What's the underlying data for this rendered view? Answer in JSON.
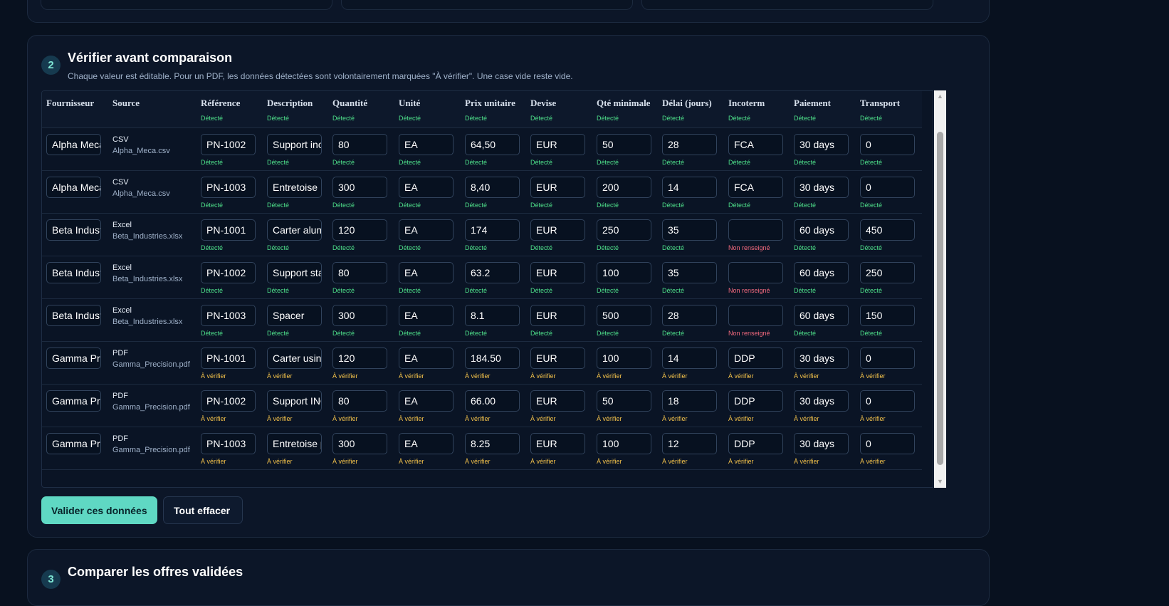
{
  "section2": {
    "step": "2",
    "title": "Vérifier avant comparaison",
    "subtitle": "Chaque valeur est éditable. Pour un PDF, les données détectées sont volontairement marquées \"À vérifier\". Une case vide reste vide."
  },
  "columns": [
    {
      "key": "fournisseur",
      "label": "Fournisseur",
      "status": ""
    },
    {
      "key": "source",
      "label": "Source",
      "status": ""
    },
    {
      "key": "reference",
      "label": "Référence",
      "status": "Détecté"
    },
    {
      "key": "description",
      "label": "Description",
      "status": "Détecté"
    },
    {
      "key": "quantite",
      "label": "Quantité",
      "status": "Détecté"
    },
    {
      "key": "unite",
      "label": "Unité",
      "status": "Détecté"
    },
    {
      "key": "prix",
      "label": "Prix unitaire",
      "status": "Détecté"
    },
    {
      "key": "devise",
      "label": "Devise",
      "status": "Détecté"
    },
    {
      "key": "qte_min",
      "label": "Qté minimale",
      "status": "Détecté"
    },
    {
      "key": "delai",
      "label": "Délai (jours)",
      "status": "Détecté"
    },
    {
      "key": "incoterm",
      "label": "Incoterm",
      "status": "Détecté"
    },
    {
      "key": "paiement",
      "label": "Paiement",
      "status": "Détecté"
    },
    {
      "key": "transport",
      "label": "Transport",
      "status": "Détecté"
    }
  ],
  "status_labels": {
    "ok": "Détecté",
    "warn": "À vérifier",
    "miss": "Non renseigné"
  },
  "rows": [
    {
      "fournisseur": "Alpha Meca",
      "source_type": "CSV",
      "source_file": "Alpha_Meca.csv",
      "values": [
        "PN-1002",
        "Support inox",
        "80",
        "EA",
        "64,50",
        "EUR",
        "50",
        "28",
        "FCA",
        "30 days",
        "0"
      ],
      "statuses": [
        "Détecté",
        "Détecté",
        "Détecté",
        "Détecté",
        "Détecté",
        "Détecté",
        "Détecté",
        "Détecté",
        "Détecté",
        "Détecté",
        "Détecté"
      ]
    },
    {
      "fournisseur": "Alpha Meca",
      "source_type": "CSV",
      "source_file": "Alpha_Meca.csv",
      "values": [
        "PN-1003",
        "Entretoise",
        "300",
        "EA",
        "8,40",
        "EUR",
        "200",
        "14",
        "FCA",
        "30 days",
        "0"
      ],
      "statuses": [
        "Détecté",
        "Détecté",
        "Détecté",
        "Détecté",
        "Détecté",
        "Détecté",
        "Détecté",
        "Détecté",
        "Détecté",
        "Détecté",
        "Détecté"
      ]
    },
    {
      "fournisseur": "Beta Industries",
      "source_type": "Excel",
      "source_file": "Beta_Industries.xlsx",
      "values": [
        "PN-1001",
        "Carter aluminium",
        "120",
        "EA",
        "174",
        "EUR",
        "250",
        "35",
        "",
        "60 days",
        "450"
      ],
      "statuses": [
        "Détecté",
        "Détecté",
        "Détecté",
        "Détecté",
        "Détecté",
        "Détecté",
        "Détecté",
        "Détecté",
        "Non renseigné",
        "Détecté",
        "Détecté"
      ]
    },
    {
      "fournisseur": "Beta Industries",
      "source_type": "Excel",
      "source_file": "Beta_Industries.xlsx",
      "values": [
        "PN-1002",
        "Support stainless",
        "80",
        "EA",
        "63.2",
        "EUR",
        "100",
        "35",
        "",
        "60 days",
        "250"
      ],
      "statuses": [
        "Détecté",
        "Détecté",
        "Détecté",
        "Détecté",
        "Détecté",
        "Détecté",
        "Détecté",
        "Détecté",
        "Non renseigné",
        "Détecté",
        "Détecté"
      ]
    },
    {
      "fournisseur": "Beta Industries",
      "source_type": "Excel",
      "source_file": "Beta_Industries.xlsx",
      "values": [
        "PN-1003",
        "Spacer",
        "300",
        "EA",
        "8.1",
        "EUR",
        "500",
        "28",
        "",
        "60 days",
        "150"
      ],
      "statuses": [
        "Détecté",
        "Détecté",
        "Détecté",
        "Détecté",
        "Détecté",
        "Détecté",
        "Détecté",
        "Détecté",
        "Non renseigné",
        "Détecté",
        "Détecté"
      ]
    },
    {
      "fournisseur": "Gamma Precision",
      "source_type": "PDF",
      "source_file": "Gamma_Precision.pdf",
      "values": [
        "PN-1001",
        "Carter usiné",
        "120",
        "EA",
        "184.50",
        "EUR",
        "100",
        "14",
        "DDP",
        "30 days",
        "0"
      ],
      "statuses": [
        "À vérifier",
        "À vérifier",
        "À vérifier",
        "À vérifier",
        "À vérifier",
        "À vérifier",
        "À vérifier",
        "À vérifier",
        "À vérifier",
        "À vérifier",
        "À vérifier"
      ]
    },
    {
      "fournisseur": "Gamma Precision",
      "source_type": "PDF",
      "source_file": "Gamma_Precision.pdf",
      "values": [
        "PN-1002",
        "Support INOX",
        "80",
        "EA",
        "66.00",
        "EUR",
        "50",
        "18",
        "DDP",
        "30 days",
        "0"
      ],
      "statuses": [
        "À vérifier",
        "À vérifier",
        "À vérifier",
        "À vérifier",
        "À vérifier",
        "À vérifier",
        "À vérifier",
        "À vérifier",
        "À vérifier",
        "À vérifier",
        "À vérifier"
      ]
    },
    {
      "fournisseur": "Gamma Precision",
      "source_type": "PDF",
      "source_file": "Gamma_Precision.pdf",
      "values": [
        "PN-1003",
        "Entretoise précision",
        "300",
        "EA",
        "8.25",
        "EUR",
        "100",
        "12",
        "DDP",
        "30 days",
        "0"
      ],
      "statuses": [
        "À vérifier",
        "À vérifier",
        "À vérifier",
        "À vérifier",
        "À vérifier",
        "À vérifier",
        "À vérifier",
        "À vérifier",
        "À vérifier",
        "À vérifier",
        "À vérifier"
      ]
    }
  ],
  "buttons": {
    "validate": "Valider ces données",
    "clear": "Tout effacer"
  },
  "section3": {
    "step": "3",
    "title": "Comparer les offres validées"
  },
  "scrollbar": {
    "up": "▲",
    "down": "▼"
  },
  "colors": {
    "accent": "#5fd8c3",
    "ok": "#4ee08a",
    "warn": "#f2c14a",
    "miss": "#f46a7e",
    "background": "#08111f"
  }
}
